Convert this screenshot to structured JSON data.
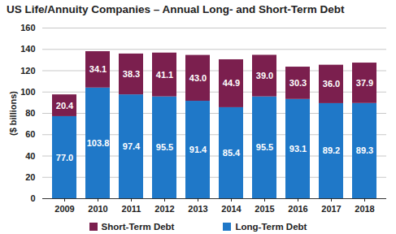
{
  "chart_data": {
    "type": "bar",
    "title": "US Life/Annuity Companies – Annual Long- and Short-Term Debt",
    "y_label": "($ billions)",
    "categories": [
      "2009",
      "2010",
      "2011",
      "2012",
      "2013",
      "2014",
      "2015",
      "2016",
      "2017",
      "2018"
    ],
    "series": [
      {
        "name": "Short-Term Debt",
        "color": "#7b1f4e",
        "values": [
          20.4,
          34.1,
          38.3,
          41.1,
          43.0,
          44.9,
          39.0,
          30.3,
          36.0,
          37.9
        ],
        "value_labels": [
          "20.4",
          "34.1",
          "38.3",
          "41.1",
          "43.0",
          "44.9",
          "39.0",
          "30.3",
          "36.0",
          "37.9"
        ]
      },
      {
        "name": "Long-Term Debt",
        "color": "#1f78c8",
        "values": [
          77.0,
          103.8,
          97.4,
          95.5,
          91.4,
          85.4,
          95.5,
          93.1,
          89.2,
          89.3
        ],
        "value_labels": [
          "77.0",
          "103.8",
          "97.4",
          "95.5",
          "91.4",
          "85.4",
          "95.5",
          "93.1",
          "89.2",
          "89.3"
        ]
      }
    ],
    "ylim": [
      0,
      160
    ],
    "yticks": [
      0,
      20,
      40,
      60,
      80,
      100,
      120,
      140,
      160
    ],
    "stacked": true,
    "data_labels": true,
    "grid": true,
    "legend": "bottom"
  }
}
